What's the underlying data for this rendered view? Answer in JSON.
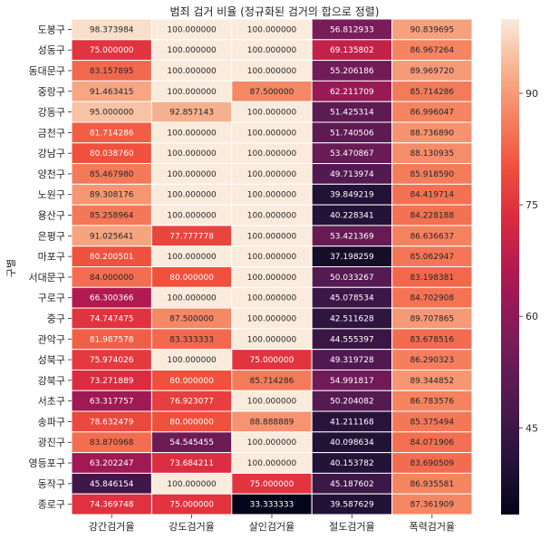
{
  "chart_data": {
    "type": "heatmap",
    "title": "범죄 검거 비율 (정규화된 검거의 합으로 정렬)",
    "ylabel": "구별",
    "xlabel": "",
    "columns": [
      "강간검거율",
      "강도검거율",
      "살인검거율",
      "절도검거율",
      "폭력검거율"
    ],
    "rows": [
      "도봉구",
      "성동구",
      "동대문구",
      "중랑구",
      "강동구",
      "금천구",
      "강남구",
      "양천구",
      "노원구",
      "용산구",
      "은평구",
      "마포구",
      "서대문구",
      "구로구",
      "중구",
      "관악구",
      "성북구",
      "강북구",
      "서초구",
      "송파구",
      "광진구",
      "영등포구",
      "동작구",
      "종로구"
    ],
    "values": [
      [
        98.373984,
        100.0,
        100.0,
        56.812933,
        90.839695
      ],
      [
        75.0,
        100.0,
        100.0,
        69.135802,
        86.967264
      ],
      [
        83.157895,
        100.0,
        100.0,
        55.206186,
        89.96972
      ],
      [
        91.463415,
        100.0,
        87.5,
        62.211709,
        85.714286
      ],
      [
        95.0,
        92.857143,
        100.0,
        51.425314,
        86.996047
      ],
      [
        81.714286,
        100.0,
        100.0,
        51.740506,
        88.73689
      ],
      [
        80.03876,
        100.0,
        100.0,
        53.470867,
        88.130935
      ],
      [
        85.46798,
        100.0,
        100.0,
        49.713974,
        85.91859
      ],
      [
        89.308176,
        100.0,
        100.0,
        39.849219,
        84.419714
      ],
      [
        85.258964,
        100.0,
        100.0,
        40.228341,
        84.228188
      ],
      [
        91.025641,
        77.777778,
        100.0,
        53.421369,
        86.636637
      ],
      [
        80.200501,
        100.0,
        100.0,
        37.198259,
        85.062947
      ],
      [
        84.0,
        80.0,
        100.0,
        50.033267,
        83.198381
      ],
      [
        66.300366,
        100.0,
        100.0,
        45.078534,
        84.702908
      ],
      [
        74.747475,
        87.5,
        100.0,
        42.511628,
        89.707865
      ],
      [
        81.987578,
        83.333333,
        100.0,
        44.555397,
        83.678516
      ],
      [
        75.974026,
        100.0,
        75.0,
        49.319728,
        86.290323
      ],
      [
        73.271889,
        80.0,
        85.714286,
        54.991817,
        89.344852
      ],
      [
        63.317757,
        76.923077,
        100.0,
        50.204082,
        86.783576
      ],
      [
        78.632479,
        80.0,
        88.888889,
        41.211168,
        85.375494
      ],
      [
        83.870968,
        54.545455,
        100.0,
        40.098634,
        84.071906
      ],
      [
        63.202247,
        73.684211,
        100.0,
        40.153782,
        83.690509
      ],
      [
        45.846154,
        100.0,
        75.0,
        45.187602,
        86.935581
      ],
      [
        74.369748,
        75.0,
        33.333333,
        39.587629,
        87.361909
      ]
    ],
    "cell_format": "%.6f",
    "colormap": "rocket",
    "vmin": 33.333333,
    "vmax": 100.0,
    "colorbar_ticks": [
      45,
      60,
      75,
      90
    ],
    "cell_border_color": "#ffffff",
    "grid": false
  }
}
